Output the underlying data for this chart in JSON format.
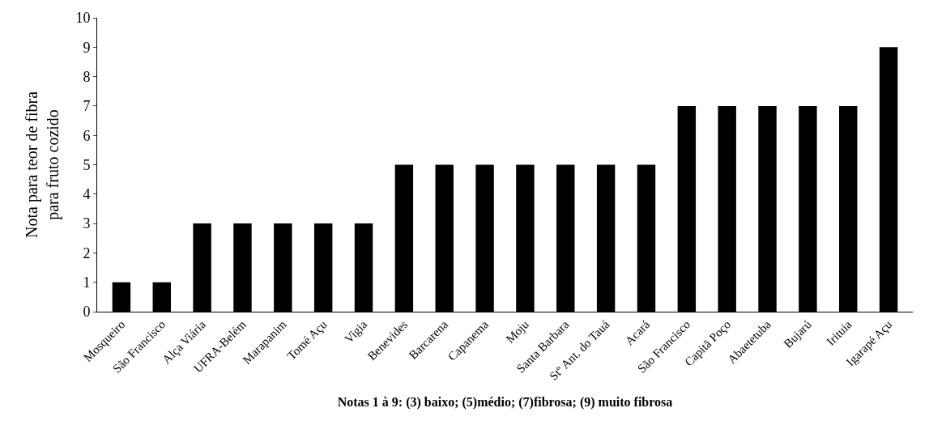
{
  "chart_data": {
    "type": "bar",
    "categories": [
      "Mosqueiro",
      "São Francisco",
      "Alça Viária",
      "UFRA-Belém",
      "Marapanim",
      "Tomé Açu",
      "Vigia",
      "Benevides",
      "Barcarena",
      "Capanema",
      "Moju",
      "Santa Barbara",
      "Stº Ant. do Tauá",
      "Acará",
      "São Francisco",
      "Capitã Poço",
      "Abaetetuba",
      "Bujarú",
      "Irituia",
      "Igarapé Açu"
    ],
    "values": [
      1,
      1,
      3,
      3,
      3,
      3,
      3,
      5,
      5,
      5,
      5,
      5,
      5,
      5,
      7,
      7,
      7,
      7,
      7,
      9
    ],
    "color": "#000000",
    "ylabel": "Nota para teor de fibra\npara fruto cozido",
    "xlabel": "Notas 1 à 9: (3) baixo; (5)médio; (7)fibrosa; (9) muito fibrosa",
    "ylim": [
      0,
      10
    ],
    "yticks": [
      0,
      1,
      2,
      3,
      4,
      5,
      6,
      7,
      8,
      9,
      10
    ]
  }
}
